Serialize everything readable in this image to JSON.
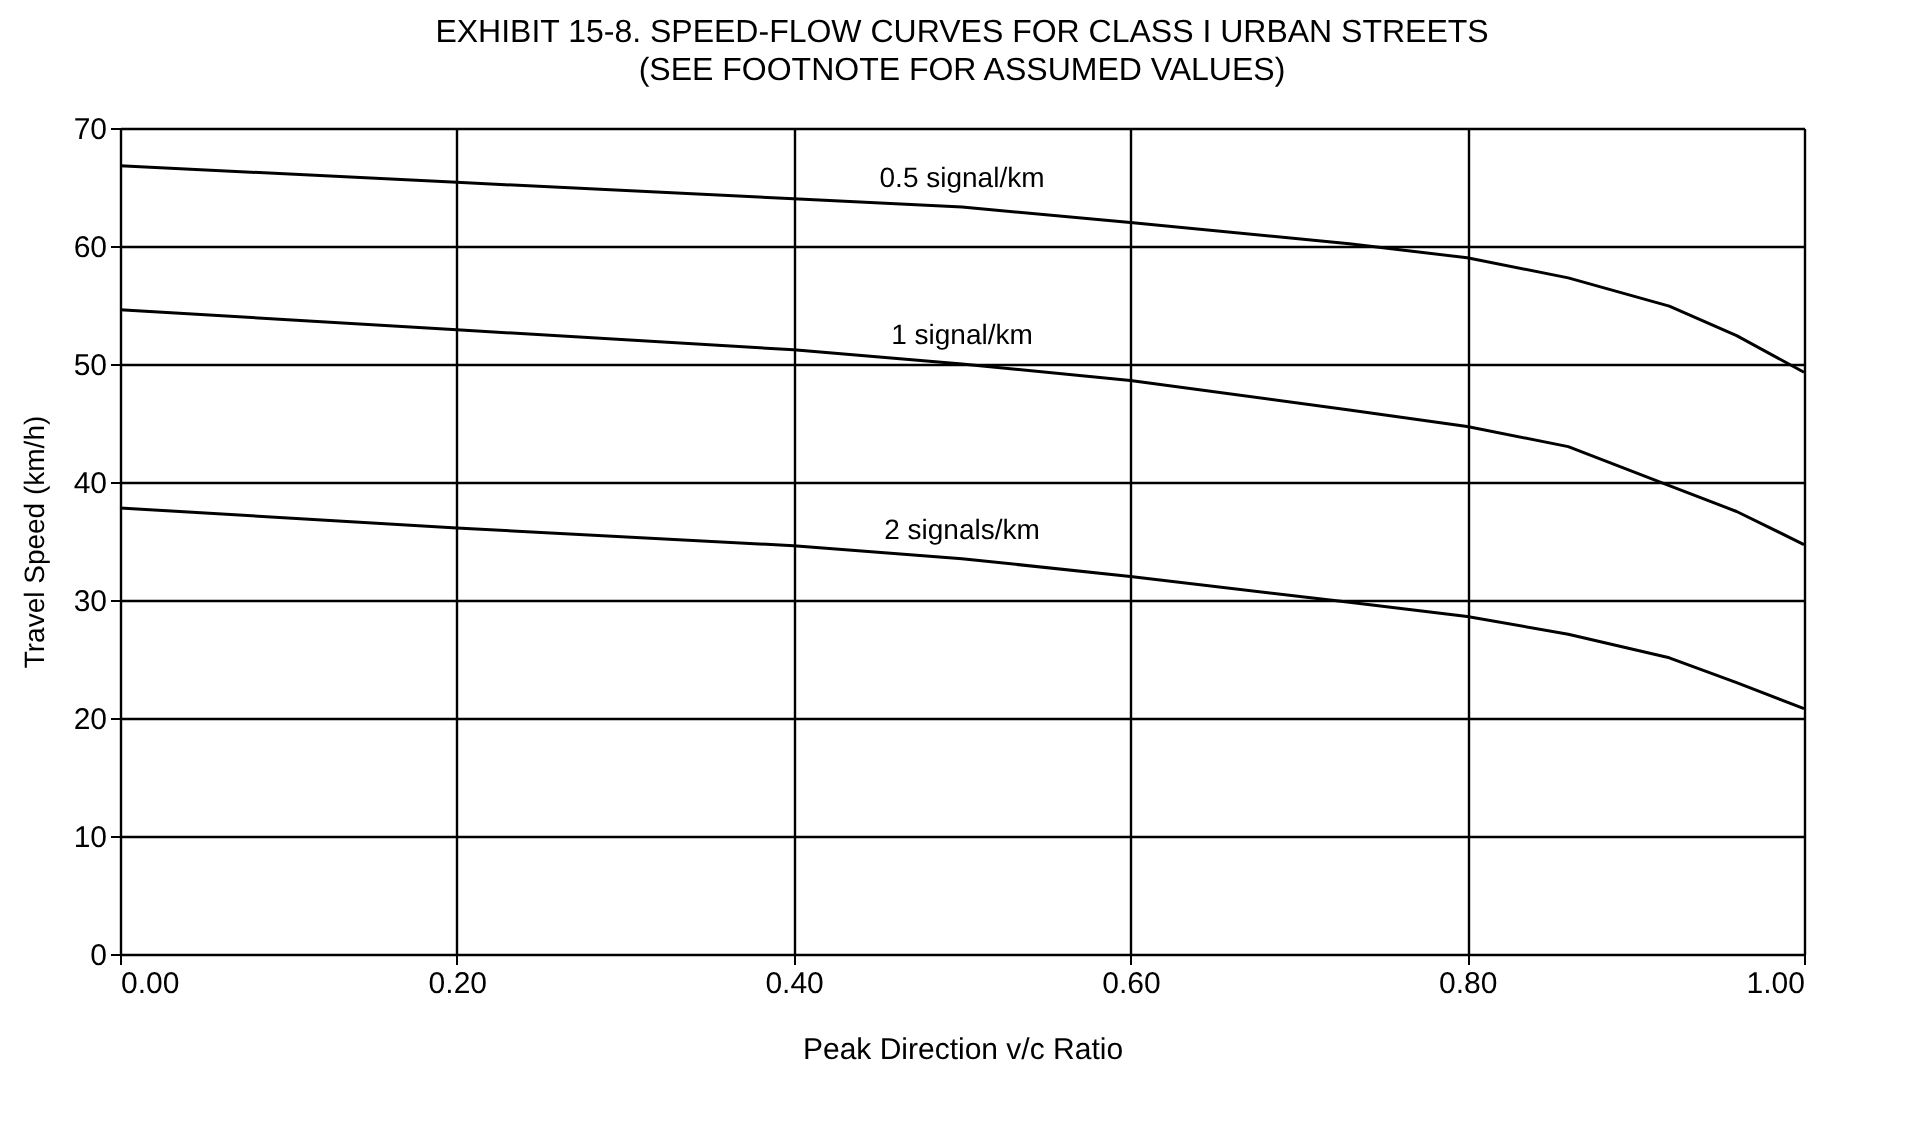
{
  "chart_data": {
    "type": "line",
    "title": "EXHIBIT 15-8. SPEED-FLOW CURVES FOR CLASS I URBAN STREETS",
    "subtitle": "(SEE FOOTNOTE FOR ASSUMED VALUES)",
    "xlabel": "Peak Direction v/c Ratio",
    "ylabel": "Travel Speed (km/h)",
    "x": [
      0,
      0.2,
      0.4,
      0.5,
      0.6,
      0.73,
      0.8,
      0.86,
      0.92,
      0.96,
      1.0
    ],
    "series": [
      {
        "name": "0.5 signal/km",
        "color": "#000000",
        "values": [
          66.8,
          65.4,
          64.0,
          63.3,
          62.0,
          60.2,
          59.0,
          57.3,
          54.9,
          52.4,
          49.3
        ]
      },
      {
        "name": "1 signal/km",
        "color": "#000000",
        "values": [
          54.6,
          52.9,
          51.2,
          50.0,
          48.6,
          46.1,
          44.7,
          43.0,
          39.7,
          37.5,
          34.7
        ]
      },
      {
        "name": "2 signals/km",
        "color": "#000000",
        "values": [
          37.8,
          36.1,
          34.6,
          33.5,
          32.0,
          29.8,
          28.6,
          27.1,
          25.1,
          23.0,
          20.8
        ]
      }
    ],
    "xlim": [
      0,
      1
    ],
    "xticks": [
      {
        "value": 0,
        "label": "0.00"
      },
      {
        "value": 0.2,
        "label": "0.20"
      },
      {
        "value": 0.4,
        "label": "0.40"
      },
      {
        "value": 0.6,
        "label": "0.60"
      },
      {
        "value": 0.8,
        "label": "0.80"
      },
      {
        "value": 1,
        "label": "1.00"
      }
    ],
    "ylim": [
      0,
      70
    ],
    "yticks": [
      0,
      10,
      20,
      30,
      40,
      50,
      60,
      70
    ],
    "grid": true,
    "marker": "none",
    "line_style": "solid"
  }
}
